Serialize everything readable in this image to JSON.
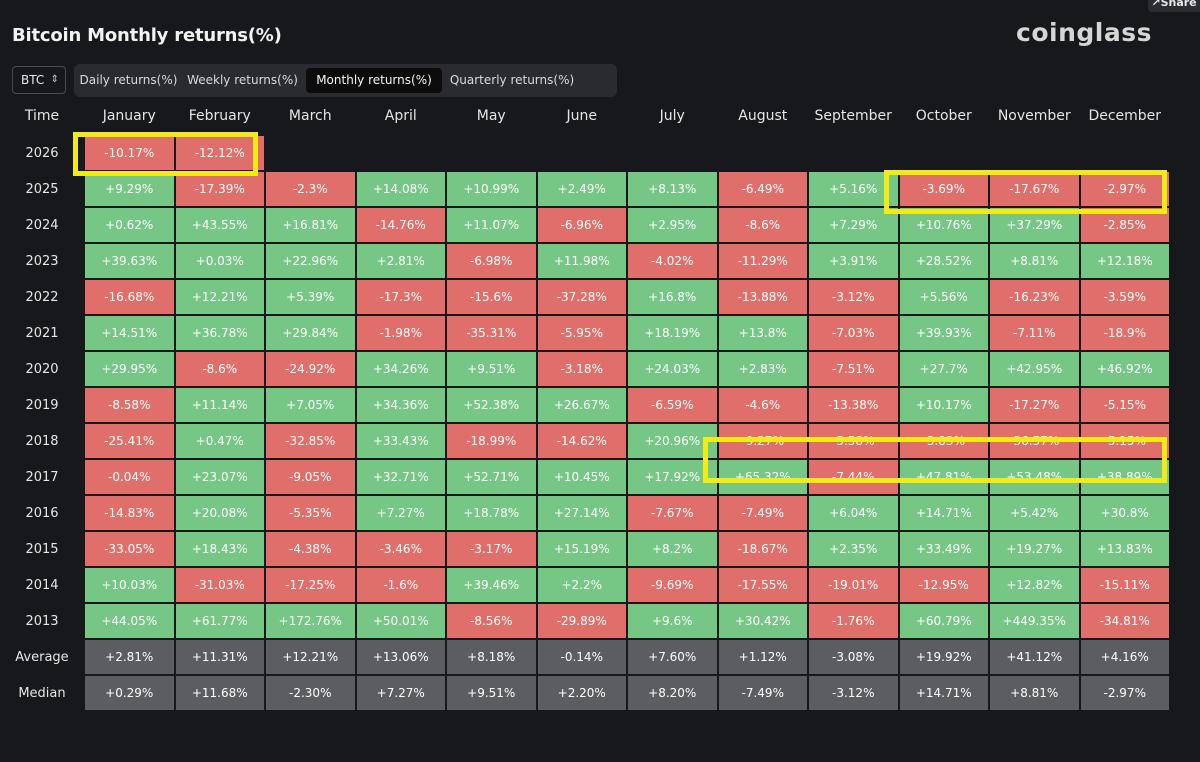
{
  "share_label": "Share",
  "title": "Bitcoin Monthly returns(%)",
  "logo": "coinglass",
  "asset": {
    "label": "BTC",
    "chevron": "⌃⌄"
  },
  "tabs": [
    {
      "label": "Daily returns(%)",
      "active": false
    },
    {
      "label": "Weekly returns(%)",
      "active": false
    },
    {
      "label": "Monthly returns(%)",
      "active": true
    },
    {
      "label": "Quarterly returns(%)",
      "active": false
    }
  ],
  "table": {
    "corner": "Time",
    "months": [
      "January",
      "February",
      "March",
      "April",
      "May",
      "June",
      "July",
      "August",
      "September",
      "October",
      "November",
      "December"
    ],
    "rows": [
      {
        "year": "2026",
        "values": [
          "-10.17%",
          "-12.12%",
          "",
          "",
          "",
          "",
          "",
          "",
          "",
          "",
          "",
          ""
        ]
      },
      {
        "year": "2025",
        "values": [
          "+9.29%",
          "-17.39%",
          "-2.3%",
          "+14.08%",
          "+10.99%",
          "+2.49%",
          "+8.13%",
          "-6.49%",
          "+5.16%",
          "-3.69%",
          "-17.67%",
          "-2.97%"
        ]
      },
      {
        "year": "2024",
        "values": [
          "+0.62%",
          "+43.55%",
          "+16.81%",
          "-14.76%",
          "+11.07%",
          "-6.96%",
          "+2.95%",
          "-8.6%",
          "+7.29%",
          "+10.76%",
          "+37.29%",
          "-2.85%"
        ]
      },
      {
        "year": "2023",
        "values": [
          "+39.63%",
          "+0.03%",
          "+22.96%",
          "+2.81%",
          "-6.98%",
          "+11.98%",
          "-4.02%",
          "-11.29%",
          "+3.91%",
          "+28.52%",
          "+8.81%",
          "+12.18%"
        ]
      },
      {
        "year": "2022",
        "values": [
          "-16.68%",
          "+12.21%",
          "+5.39%",
          "-17.3%",
          "-15.6%",
          "-37.28%",
          "+16.8%",
          "-13.88%",
          "-3.12%",
          "+5.56%",
          "-16.23%",
          "-3.59%"
        ]
      },
      {
        "year": "2021",
        "values": [
          "+14.51%",
          "+36.78%",
          "+29.84%",
          "-1.98%",
          "-35.31%",
          "-5.95%",
          "+18.19%",
          "+13.8%",
          "-7.03%",
          "+39.93%",
          "-7.11%",
          "-18.9%"
        ]
      },
      {
        "year": "2020",
        "values": [
          "+29.95%",
          "-8.6%",
          "-24.92%",
          "+34.26%",
          "+9.51%",
          "-3.18%",
          "+24.03%",
          "+2.83%",
          "-7.51%",
          "+27.7%",
          "+42.95%",
          "+46.92%"
        ]
      },
      {
        "year": "2019",
        "values": [
          "-8.58%",
          "+11.14%",
          "+7.05%",
          "+34.36%",
          "+52.38%",
          "+26.67%",
          "-6.59%",
          "-4.6%",
          "-13.38%",
          "+10.17%",
          "-17.27%",
          "-5.15%"
        ]
      },
      {
        "year": "2018",
        "values": [
          "-25.41%",
          "+0.47%",
          "-32.85%",
          "+33.43%",
          "-18.99%",
          "-14.62%",
          "+20.96%",
          "-9.27%",
          "-5.58%",
          "-3.83%",
          "-36.57%",
          "-5.15%"
        ]
      },
      {
        "year": "2017",
        "values": [
          "-0.04%",
          "+23.07%",
          "-9.05%",
          "+32.71%",
          "+52.71%",
          "+10.45%",
          "+17.92%",
          "+65.32%",
          "-7.44%",
          "+47.81%",
          "+53.48%",
          "+38.89%"
        ]
      },
      {
        "year": "2016",
        "values": [
          "-14.83%",
          "+20.08%",
          "-5.35%",
          "+7.27%",
          "+18.78%",
          "+27.14%",
          "-7.67%",
          "-7.49%",
          "+6.04%",
          "+14.71%",
          "+5.42%",
          "+30.8%"
        ]
      },
      {
        "year": "2015",
        "values": [
          "-33.05%",
          "+18.43%",
          "-4.38%",
          "-3.46%",
          "-3.17%",
          "+15.19%",
          "+8.2%",
          "-18.67%",
          "+2.35%",
          "+33.49%",
          "+19.27%",
          "+13.83%"
        ]
      },
      {
        "year": "2014",
        "values": [
          "+10.03%",
          "-31.03%",
          "-17.25%",
          "-1.6%",
          "+39.46%",
          "+2.2%",
          "-9.69%",
          "-17.55%",
          "-19.01%",
          "-12.95%",
          "+12.82%",
          "-15.11%"
        ]
      },
      {
        "year": "2013",
        "values": [
          "+44.05%",
          "+61.77%",
          "+172.76%",
          "+50.01%",
          "-8.56%",
          "-29.89%",
          "+9.6%",
          "+30.42%",
          "-1.76%",
          "+60.79%",
          "+449.35%",
          "-34.81%"
        ]
      }
    ],
    "stats": [
      {
        "label": "Average",
        "values": [
          "+2.81%",
          "+11.31%",
          "+12.21%",
          "+13.06%",
          "+8.18%",
          "-0.14%",
          "+7.60%",
          "+1.12%",
          "-3.08%",
          "+19.92%",
          "+41.12%",
          "+4.16%"
        ]
      },
      {
        "label": "Median",
        "values": [
          "+0.29%",
          "+11.68%",
          "-2.30%",
          "+7.27%",
          "+9.51%",
          "+2.20%",
          "+8.20%",
          "-7.49%",
          "-3.12%",
          "+14.71%",
          "+8.81%",
          "-2.97%"
        ]
      }
    ]
  },
  "colors": {
    "positive": "#76c785",
    "negative": "#e06e6b",
    "stat": "#5c5d60",
    "highlight": "#f3ec14",
    "background": "#17181b"
  }
}
